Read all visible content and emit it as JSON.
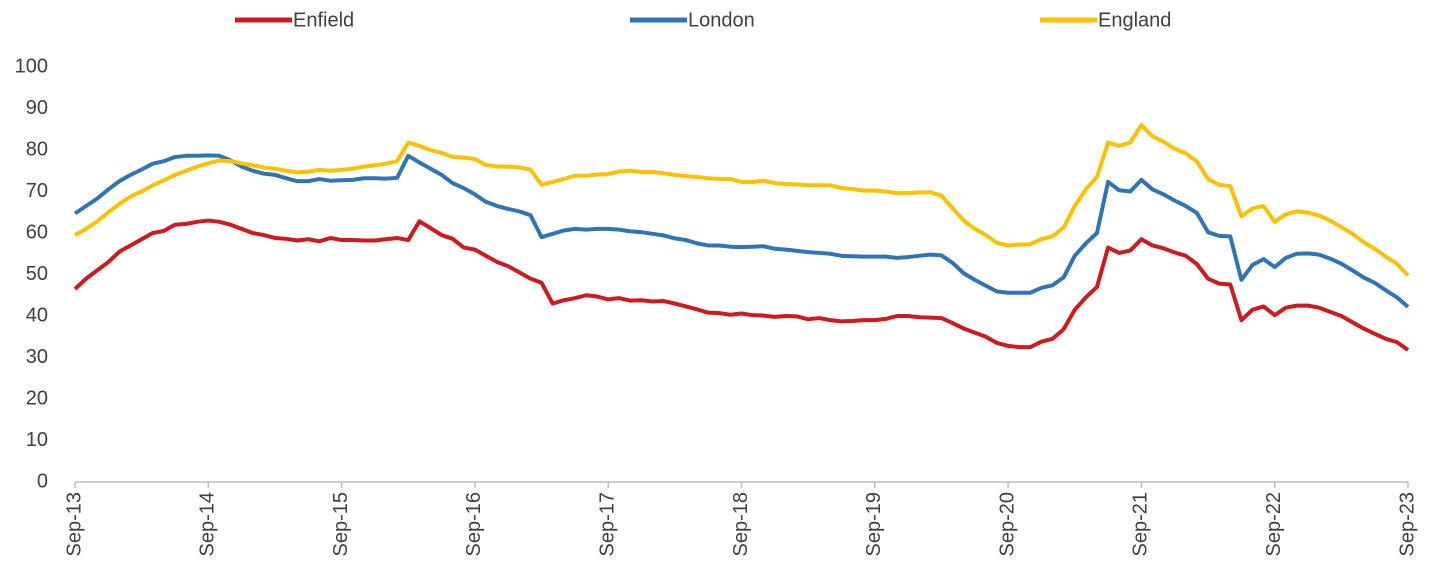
{
  "chart_data": {
    "type": "line",
    "legend": "top",
    "categories": [
      "Sep-13",
      null,
      null,
      null,
      null,
      null,
      null,
      null,
      null,
      null,
      null,
      null,
      "Sep-14",
      null,
      null,
      null,
      null,
      null,
      null,
      null,
      null,
      null,
      null,
      null,
      "Sep-15",
      null,
      null,
      null,
      null,
      null,
      null,
      null,
      null,
      null,
      null,
      null,
      "Sep-16",
      null,
      null,
      null,
      null,
      null,
      null,
      null,
      null,
      null,
      null,
      null,
      "Sep-17",
      null,
      null,
      null,
      null,
      null,
      null,
      null,
      null,
      null,
      null,
      null,
      "Sep-18",
      null,
      null,
      null,
      null,
      null,
      null,
      null,
      null,
      null,
      null,
      null,
      "Sep-19",
      null,
      null,
      null,
      null,
      null,
      null,
      null,
      null,
      null,
      null,
      null,
      "Sep-20",
      null,
      null,
      null,
      null,
      null,
      null,
      null,
      null,
      null,
      null,
      null,
      "Sep-21",
      null,
      null,
      null,
      null,
      null,
      null,
      null,
      null,
      null,
      null,
      null,
      "Sep-22",
      null,
      null,
      null,
      null,
      null,
      null,
      null,
      null,
      null,
      null,
      null,
      "Sep-23"
    ],
    "series": [
      {
        "name": "Enfield",
        "color": "#d0181f",
        "values": [
          46.5,
          49,
          51,
          53,
          55.5,
          57,
          58.5,
          60,
          60.5,
          62,
          62.2,
          62.7,
          63,
          62.7,
          62,
          61,
          60,
          59.5,
          58.8,
          58.6,
          58.2,
          58.5,
          58,
          58.8,
          58.3,
          58.3,
          58.2,
          58.2,
          58.5,
          58.8,
          58.3,
          62.8,
          61.2,
          59.5,
          58.6,
          56.5,
          56,
          54.5,
          53,
          52,
          50.5,
          49,
          48,
          43,
          43.8,
          44.3,
          45,
          44.7,
          44,
          44.3,
          43.7,
          43.8,
          43.5,
          43.6,
          43,
          42.3,
          41.6,
          40.8,
          40.7,
          40.3,
          40.6,
          40.2,
          40.1,
          39.8,
          40,
          39.9,
          39.2,
          39.5,
          39,
          38.7,
          38.8,
          39,
          39,
          39.3,
          40,
          40,
          39.7,
          39.6,
          39.5,
          38.3,
          37,
          36,
          35,
          33.5,
          32.8,
          32.5,
          32.5,
          33.8,
          34.5,
          36.8,
          41.5,
          44.5,
          47,
          56.5,
          55.2,
          55.8,
          58.5,
          57,
          56.3,
          55.3,
          54.5,
          52.5,
          49,
          47.8,
          47.6,
          39,
          41.5,
          42.3,
          40.2,
          42,
          42.5,
          42.5,
          42,
          41,
          40,
          38.5,
          37,
          35.7,
          34.5,
          33.7,
          31.8
        ]
      },
      {
        "name": "London",
        "color": "#2e75b6",
        "values": [
          64.7,
          66.5,
          68.3,
          70.5,
          72.5,
          74,
          75.3,
          76.7,
          77.3,
          78.3,
          78.6,
          78.6,
          78.7,
          78.6,
          77.5,
          76,
          75,
          74.3,
          74,
          73.2,
          72.5,
          72.5,
          73,
          72.6,
          72.7,
          72.8,
          73.2,
          73.2,
          73.1,
          73.3,
          78.6,
          77,
          75.5,
          74,
          72,
          70.8,
          69.3,
          67.5,
          66.5,
          65.8,
          65.2,
          64.3,
          59,
          59.8,
          60.6,
          61,
          60.8,
          61,
          61,
          60.8,
          60.4,
          60.2,
          59.8,
          59.4,
          58.7,
          58.3,
          57.5,
          57,
          57,
          56.7,
          56.6,
          56.7,
          56.8,
          56.2,
          56,
          55.7,
          55.4,
          55.2,
          55,
          54.5,
          54.4,
          54.3,
          54.3,
          54.3,
          54,
          54.2,
          54.5,
          54.8,
          54.6,
          52.8,
          50.3,
          48.7,
          47.3,
          45.9,
          45.6,
          45.6,
          45.6,
          46.8,
          47.4,
          49.3,
          54.5,
          57.5,
          60,
          72.3,
          70.3,
          70,
          72.8,
          70.5,
          69.3,
          67.8,
          66.5,
          64.8,
          60.2,
          59.3,
          59.2,
          48.7,
          52.3,
          53.7,
          51.8,
          54,
          55,
          55.1,
          54.8,
          53.8,
          52.6,
          51,
          49.3,
          48,
          46.2,
          44.5,
          42.2
        ]
      },
      {
        "name": "England",
        "color": "#ffc000",
        "values": [
          59.5,
          61,
          62.8,
          65,
          67,
          68.8,
          70,
          71.5,
          72.7,
          74,
          75,
          76,
          76.8,
          77.5,
          77.3,
          76.8,
          76.3,
          75.8,
          75.5,
          75,
          74.6,
          74.8,
          75.2,
          75,
          75.2,
          75.5,
          76,
          76.3,
          76.7,
          77.3,
          81.8,
          81,
          80,
          79.3,
          78.3,
          78.2,
          77.8,
          76.4,
          76,
          76,
          75.8,
          75.3,
          71.6,
          72.3,
          73,
          73.8,
          73.8,
          74.1,
          74.2,
          74.8,
          75,
          74.7,
          74.7,
          74.4,
          74,
          73.7,
          73.5,
          73.2,
          73,
          73,
          72.3,
          72.3,
          72.6,
          72,
          71.8,
          71.7,
          71.5,
          71.5,
          71.5,
          70.8,
          70.6,
          70.2,
          70.2,
          70,
          69.6,
          69.6,
          69.8,
          69.8,
          69,
          66,
          63,
          61,
          59.5,
          57.6,
          57,
          57.2,
          57.3,
          58.5,
          59.2,
          61.3,
          66.5,
          70.5,
          73.5,
          81.8,
          81,
          81.8,
          86,
          83.3,
          82,
          80.3,
          79.2,
          77.2,
          73,
          71.6,
          71.3,
          64,
          65.9,
          66.5,
          62.7,
          64.5,
          65.2,
          64.9,
          64.2,
          63,
          61.4,
          59.8,
          57.8,
          56.2,
          54.3,
          52.6,
          49.8
        ]
      }
    ],
    "ylim": [
      0,
      100
    ],
    "yticks": [
      0,
      10,
      20,
      30,
      40,
      50,
      60,
      70,
      80,
      90,
      100
    ],
    "grid": false
  }
}
